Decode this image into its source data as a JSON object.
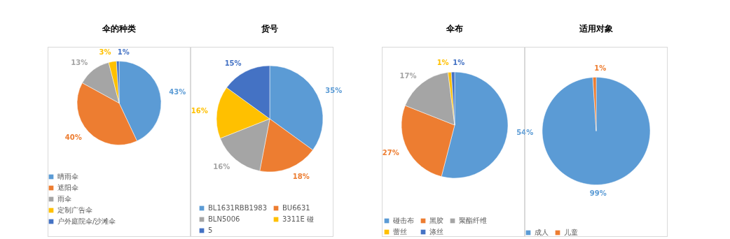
{
  "chart_data": [
    {
      "type": "pie",
      "title": "伞的种类",
      "categories": [
        "晴雨伞",
        "遮阳伞",
        "雨伞",
        "定制广告伞",
        "户外庭院伞/沙滩伞"
      ],
      "values": [
        43,
        40,
        13,
        3,
        1
      ],
      "value_labels": [
        "43%",
        "40%",
        "13%",
        "3%",
        "1%"
      ],
      "colors": [
        "#5b9bd5",
        "#ed7d31",
        "#a5a5a5",
        "#ffc000",
        "#4472c4"
      ],
      "legend": "bottom"
    },
    {
      "type": "pie",
      "title": "货号",
      "categories": [
        "BL1631RBB1983",
        "BU6631",
        "BLN5006",
        "3311E 碰",
        "5"
      ],
      "values": [
        35,
        18,
        16,
        16,
        15
      ],
      "value_labels": [
        "35%",
        "18%",
        "16%",
        "16%",
        "15%"
      ],
      "colors": [
        "#5b9bd5",
        "#ed7d31",
        "#a5a5a5",
        "#ffc000",
        "#4472c4"
      ],
      "legend": "bottom"
    },
    {
      "type": "pie",
      "title": "伞布",
      "categories": [
        "碰击布",
        "黑胶",
        "聚酯纤维",
        "蕾丝",
        "涤丝"
      ],
      "values": [
        54,
        27,
        17,
        1,
        1
      ],
      "value_labels": [
        "54%",
        "27%",
        "17%",
        "1%",
        "1%"
      ],
      "colors": [
        "#5b9bd5",
        "#ed7d31",
        "#a5a5a5",
        "#ffc000",
        "#4472c4"
      ],
      "legend": "bottom"
    },
    {
      "type": "pie",
      "title": "适用对象",
      "categories": [
        "成人",
        "儿童"
      ],
      "values": [
        99,
        1
      ],
      "value_labels": [
        "99%",
        "1%"
      ],
      "colors": [
        "#5b9bd5",
        "#ed7d31"
      ],
      "legend": "bottom"
    }
  ]
}
